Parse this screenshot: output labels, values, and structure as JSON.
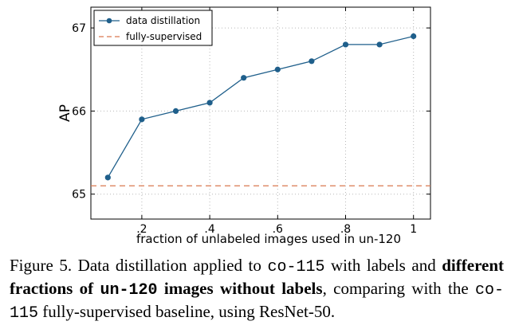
{
  "chart_data": {
    "type": "line",
    "xlabel": "fraction of unlabeled images used in un-120",
    "ylabel": "AP",
    "xlim": [
      0.05,
      1.05
    ],
    "ylim": [
      64.7,
      67.25
    ],
    "xticks": [
      0.2,
      0.4,
      0.6,
      0.8,
      1.0
    ],
    "xtick_labels": [
      ".2",
      ".4",
      ".6",
      ".8",
      "1"
    ],
    "yticks": [
      65,
      66,
      67
    ],
    "ytick_labels": [
      "65",
      "66",
      "67"
    ],
    "grid": true,
    "legend_position": "top-left",
    "series": [
      {
        "name": "data distillation",
        "color": "#1f5f8b",
        "style": "solid-with-markers",
        "x": [
          0.1,
          0.2,
          0.3,
          0.4,
          0.5,
          0.6,
          0.7,
          0.8,
          0.9,
          1.0
        ],
        "y": [
          65.2,
          65.9,
          66.0,
          66.1,
          66.4,
          66.5,
          66.6,
          66.8,
          66.8,
          66.9
        ]
      },
      {
        "name": "fully-supervised",
        "color": "#d9774f",
        "style": "dashed",
        "y_const": 65.1
      }
    ]
  },
  "caption": {
    "p1": "Figure 5. Data distillation applied to ",
    "c1": "co-115",
    "p2": " with labels and ",
    "b1": "different fractions of ",
    "bc": "un-120",
    "b2": " images without labels",
    "p3": ", comparing with the ",
    "c2": "co-115",
    "p4": " fully-supervised baseline, using ResNet-50."
  }
}
